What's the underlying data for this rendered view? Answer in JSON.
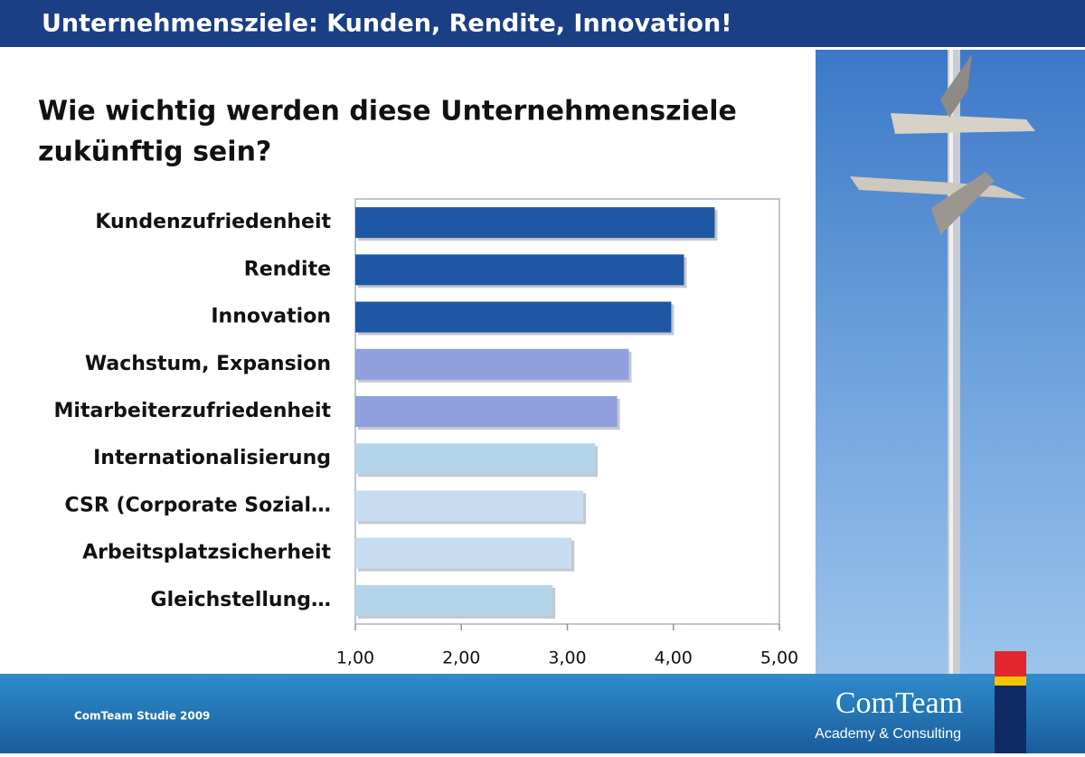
{
  "slide_title": "Unternehmensziele: Kunden, Rendite, Innovation!",
  "footer": "ComTeam Studie 2009",
  "logo": {
    "name": "ComTeam",
    "tagline": "Academy & Consulting"
  },
  "chart_data": {
    "type": "bar",
    "orientation": "horizontal",
    "title_lines": [
      "Wie wichtig werden diese Unternehmensziele",
      "zukünftig sein?"
    ],
    "categories": [
      "Kundenzufriedenheit",
      "Rendite",
      "Innovation",
      "Wachstum, Expansion",
      "Mitarbeiterzufriedenheit",
      "Internationalisierung",
      "CSR (Corporate Sozial…",
      "Arbeitsplatzsicherheit",
      "Gleichstellung…"
    ],
    "values": [
      4.39,
      4.1,
      3.98,
      3.58,
      3.47,
      3.26,
      3.15,
      3.04,
      2.86
    ],
    "colors": [
      "#1f57a5",
      "#1f57a5",
      "#1f57a5",
      "#8fa0dc",
      "#8fa0dc",
      "#b4d4ea",
      "#c7dcf0",
      "#c7dcf0",
      "#b4d4ea"
    ],
    "xlim": [
      1,
      5
    ],
    "xticks": [
      {
        "value": 1,
        "label": "1,00"
      },
      {
        "value": 2,
        "label": "2,00"
      },
      {
        "value": 3,
        "label": "3,00"
      },
      {
        "value": 4,
        "label": "4,00"
      },
      {
        "value": 5,
        "label": "5,00"
      }
    ],
    "grid": false
  }
}
